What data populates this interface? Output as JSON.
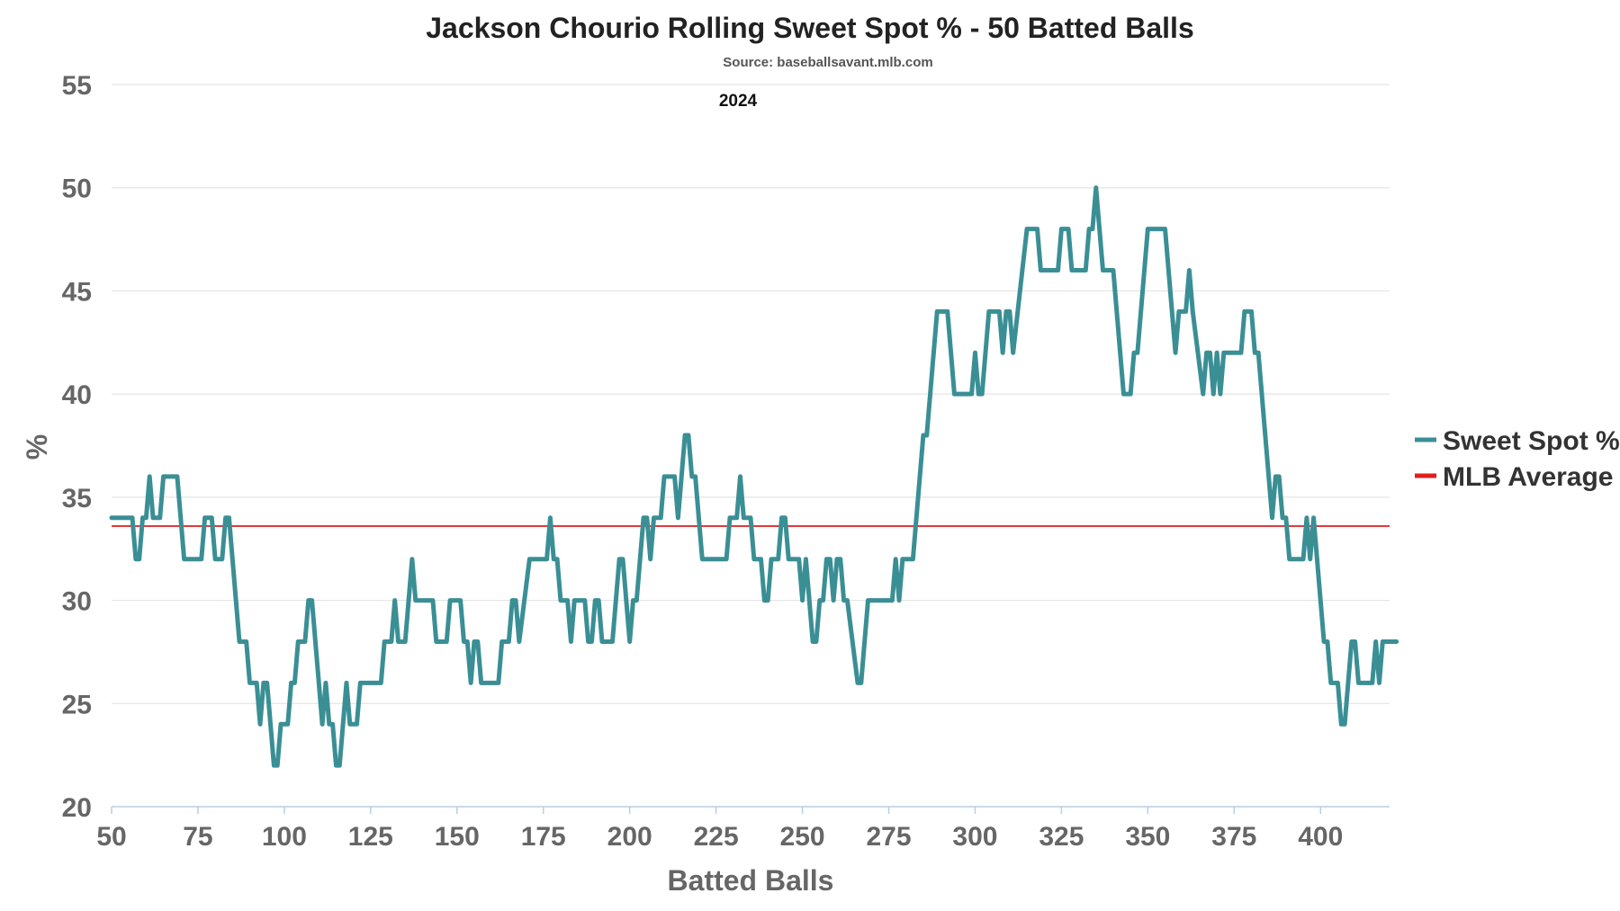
{
  "chart_data": {
    "type": "line",
    "title": "Jackson Chourio Rolling Sweet Spot % - 50 Batted Balls",
    "subtitle": "Source: baseballsavant.mlb.com",
    "annotation": "2024",
    "xlabel": "Batted Balls",
    "ylabel": "%",
    "xlim": [
      50,
      420
    ],
    "ylim": [
      20,
      55
    ],
    "x_ticks": [
      50,
      75,
      100,
      125,
      150,
      175,
      200,
      225,
      250,
      275,
      300,
      325,
      350,
      375,
      400
    ],
    "y_ticks": [
      20,
      25,
      30,
      35,
      40,
      45,
      50,
      55
    ],
    "grid": true,
    "legend_position": "right",
    "reference_line": {
      "name": "MLB Average",
      "value": 33.6,
      "color": "#e11d1d"
    },
    "series": [
      {
        "name": "Sweet Spot %",
        "color": "#3a8f95",
        "points": [
          [
            50,
            34
          ],
          [
            56,
            34
          ],
          [
            57,
            32
          ],
          [
            58,
            32
          ],
          [
            59,
            34
          ],
          [
            60,
            34
          ],
          [
            61,
            36
          ],
          [
            62,
            34
          ],
          [
            64,
            34
          ],
          [
            65,
            36
          ],
          [
            69,
            36
          ],
          [
            71,
            32
          ],
          [
            76,
            32
          ],
          [
            77,
            34
          ],
          [
            79,
            34
          ],
          [
            80,
            32
          ],
          [
            82,
            32
          ],
          [
            83,
            34
          ],
          [
            84,
            34
          ],
          [
            86,
            30
          ],
          [
            87,
            28
          ],
          [
            89,
            28
          ],
          [
            90,
            26
          ],
          [
            92,
            26
          ],
          [
            93,
            24
          ],
          [
            94,
            26
          ],
          [
            95,
            26
          ],
          [
            96,
            24
          ],
          [
            97,
            22
          ],
          [
            98,
            22
          ],
          [
            99,
            24
          ],
          [
            101,
            24
          ],
          [
            102,
            26
          ],
          [
            103,
            26
          ],
          [
            104,
            28
          ],
          [
            106,
            28
          ],
          [
            107,
            30
          ],
          [
            108,
            30
          ],
          [
            110,
            26
          ],
          [
            111,
            24
          ],
          [
            112,
            26
          ],
          [
            113,
            24
          ],
          [
            114,
            24
          ],
          [
            115,
            22
          ],
          [
            116,
            22
          ],
          [
            118,
            26
          ],
          [
            119,
            24
          ],
          [
            121,
            24
          ],
          [
            122,
            26
          ],
          [
            128,
            26
          ],
          [
            129,
            28
          ],
          [
            131,
            28
          ],
          [
            132,
            30
          ],
          [
            133,
            28
          ],
          [
            135,
            28
          ],
          [
            137,
            32
          ],
          [
            138,
            30
          ],
          [
            143,
            30
          ],
          [
            144,
            28
          ],
          [
            147,
            28
          ],
          [
            148,
            30
          ],
          [
            151,
            30
          ],
          [
            152,
            28
          ],
          [
            153,
            28
          ],
          [
            154,
            26
          ],
          [
            155,
            28
          ],
          [
            156,
            28
          ],
          [
            157,
            26
          ],
          [
            162,
            26
          ],
          [
            163,
            28
          ],
          [
            165,
            28
          ],
          [
            166,
            30
          ],
          [
            167,
            30
          ],
          [
            168,
            28
          ],
          [
            171,
            32
          ],
          [
            176,
            32
          ],
          [
            177,
            34
          ],
          [
            178,
            32
          ],
          [
            179,
            32
          ],
          [
            180,
            30
          ],
          [
            182,
            30
          ],
          [
            183,
            28
          ],
          [
            184,
            30
          ],
          [
            187,
            30
          ],
          [
            188,
            28
          ],
          [
            189,
            28
          ],
          [
            190,
            30
          ],
          [
            191,
            30
          ],
          [
            192,
            28
          ],
          [
            195,
            28
          ],
          [
            197,
            32
          ],
          [
            198,
            32
          ],
          [
            200,
            28
          ],
          [
            201,
            30
          ],
          [
            202,
            30
          ],
          [
            204,
            34
          ],
          [
            205,
            34
          ],
          [
            206,
            32
          ],
          [
            207,
            34
          ],
          [
            209,
            34
          ],
          [
            210,
            36
          ],
          [
            213,
            36
          ],
          [
            214,
            34
          ],
          [
            215,
            36
          ],
          [
            216,
            38
          ],
          [
            217,
            38
          ],
          [
            218,
            36
          ],
          [
            219,
            36
          ],
          [
            221,
            32
          ],
          [
            228,
            32
          ],
          [
            229,
            34
          ],
          [
            231,
            34
          ],
          [
            232,
            36
          ],
          [
            233,
            34
          ],
          [
            235,
            34
          ],
          [
            236,
            32
          ],
          [
            238,
            32
          ],
          [
            239,
            30
          ],
          [
            240,
            30
          ],
          [
            241,
            32
          ],
          [
            243,
            32
          ],
          [
            244,
            34
          ],
          [
            245,
            34
          ],
          [
            246,
            32
          ],
          [
            249,
            32
          ],
          [
            250,
            30
          ],
          [
            251,
            32
          ],
          [
            252,
            30
          ],
          [
            253,
            28
          ],
          [
            254,
            28
          ],
          [
            255,
            30
          ],
          [
            256,
            30
          ],
          [
            257,
            32
          ],
          [
            258,
            32
          ],
          [
            259,
            30
          ],
          [
            260,
            32
          ],
          [
            261,
            32
          ],
          [
            262,
            30
          ],
          [
            263,
            30
          ],
          [
            266,
            26
          ],
          [
            267,
            26
          ],
          [
            269,
            30
          ],
          [
            276,
            30
          ],
          [
            277,
            32
          ],
          [
            278,
            30
          ],
          [
            279,
            32
          ],
          [
            282,
            32
          ],
          [
            284,
            36
          ],
          [
            285,
            38
          ],
          [
            286,
            38
          ],
          [
            289,
            44
          ],
          [
            292,
            44
          ],
          [
            294,
            40
          ],
          [
            299,
            40
          ],
          [
            300,
            42
          ],
          [
            301,
            40
          ],
          [
            302,
            40
          ],
          [
            304,
            44
          ],
          [
            307,
            44
          ],
          [
            308,
            42
          ],
          [
            309,
            44
          ],
          [
            310,
            44
          ],
          [
            311,
            42
          ],
          [
            315,
            48
          ],
          [
            318,
            48
          ],
          [
            319,
            46
          ],
          [
            324,
            46
          ],
          [
            325,
            48
          ],
          [
            327,
            48
          ],
          [
            328,
            46
          ],
          [
            332,
            46
          ],
          [
            333,
            48
          ],
          [
            334,
            48
          ],
          [
            335,
            50
          ],
          [
            336,
            48
          ],
          [
            337,
            46
          ],
          [
            340,
            46
          ],
          [
            342,
            42
          ],
          [
            343,
            40
          ],
          [
            345,
            40
          ],
          [
            346,
            42
          ],
          [
            347,
            42
          ],
          [
            350,
            48
          ],
          [
            355,
            48
          ],
          [
            357,
            44
          ],
          [
            358,
            42
          ],
          [
            359,
            44
          ],
          [
            361,
            44
          ],
          [
            362,
            46
          ],
          [
            363,
            44
          ],
          [
            366,
            40
          ],
          [
            367,
            42
          ],
          [
            368,
            42
          ],
          [
            369,
            40
          ],
          [
            370,
            42
          ],
          [
            371,
            40
          ],
          [
            372,
            42
          ],
          [
            377,
            42
          ],
          [
            378,
            44
          ],
          [
            380,
            44
          ],
          [
            381,
            42
          ],
          [
            382,
            42
          ],
          [
            384,
            38
          ],
          [
            385,
            36
          ],
          [
            386,
            34
          ],
          [
            387,
            36
          ],
          [
            388,
            36
          ],
          [
            389,
            34
          ],
          [
            390,
            34
          ],
          [
            391,
            32
          ],
          [
            395,
            32
          ],
          [
            396,
            34
          ],
          [
            397,
            32
          ],
          [
            398,
            34
          ],
          [
            400,
            30
          ],
          [
            401,
            28
          ],
          [
            402,
            28
          ],
          [
            403,
            26
          ],
          [
            405,
            26
          ],
          [
            406,
            24
          ],
          [
            407,
            24
          ],
          [
            408,
            26
          ],
          [
            409,
            28
          ],
          [
            410,
            28
          ],
          [
            411,
            26
          ],
          [
            415,
            26
          ],
          [
            416,
            28
          ],
          [
            417,
            26
          ],
          [
            418,
            28
          ],
          [
            422,
            28
          ]
        ]
      }
    ]
  }
}
